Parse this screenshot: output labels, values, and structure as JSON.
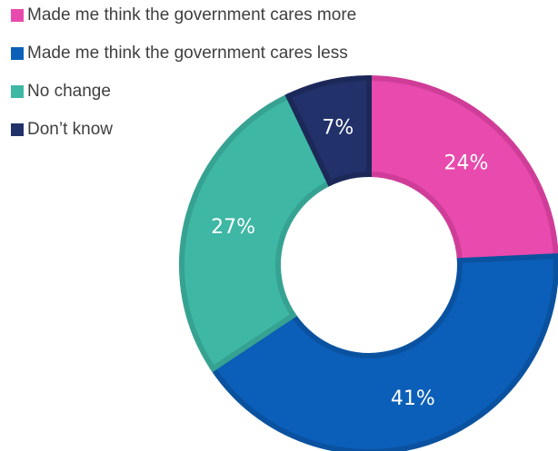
{
  "chart_data": {
    "type": "donut",
    "title": "",
    "legend_position": "top-left",
    "series": [
      {
        "categories": [
          "Made me think the government cares more",
          "Made me think the government cares less",
          "No change",
          "Don’t know"
        ],
        "values": [
          24,
          41,
          27,
          7
        ],
        "labels": [
          "24%",
          "41%",
          "27%",
          "7%"
        ],
        "colors": [
          "#e84aad",
          "#0b5fb8",
          "#3fb7a5",
          "#23316a"
        ],
        "border_colors": [
          "#cf3d98",
          "#0a52a0",
          "#36a292",
          "#1c2858"
        ]
      }
    ]
  }
}
